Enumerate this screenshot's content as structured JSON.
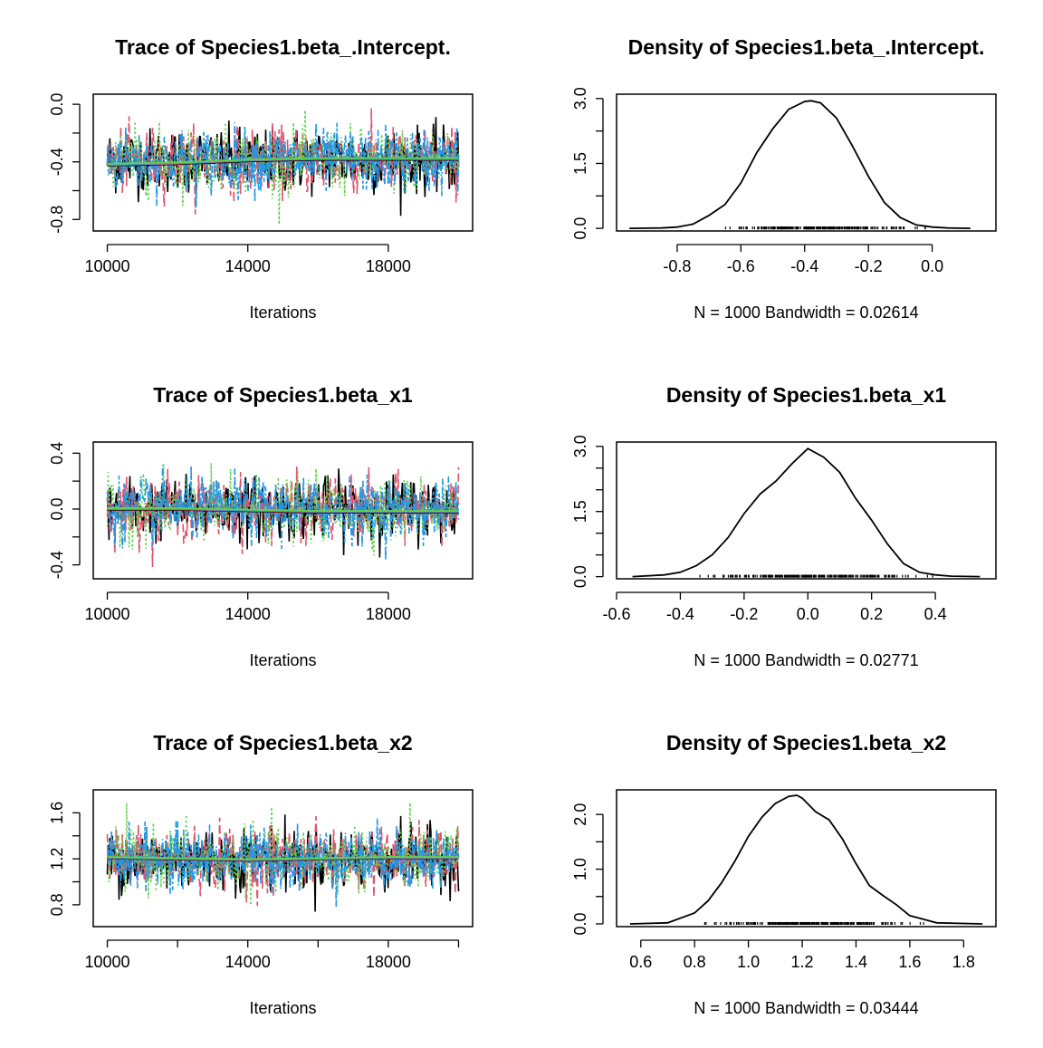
{
  "palette": {
    "chain1": "#000000",
    "chain2": "#DF536B",
    "chain3": "#61D04F",
    "chain4": "#2297E6"
  },
  "chart_data": [
    {
      "type": "line",
      "title": "Trace of Species1.beta_.Intercept.",
      "xlabel": "Iterations",
      "ylabel": "",
      "xticks": [
        10000,
        14000,
        18000
      ],
      "xtick_labels": [
        "10000",
        "14000",
        "18000"
      ],
      "yticks": [
        -0.8,
        -0.6,
        -0.4,
        -0.2,
        0.0
      ],
      "ytick_labels": [
        "-0.8",
        "",
        "-0.4",
        "",
        "0.0"
      ],
      "xlim": [
        9600,
        20400
      ],
      "ylim": [
        -0.88,
        0.07
      ],
      "grid": false,
      "n_chains": 4,
      "iterations": [
        10000,
        20000
      ],
      "chain_mean": -0.39,
      "chain_sd": 0.13,
      "smooth": [
        [
          10000,
          -0.42
        ],
        [
          12000,
          -0.41
        ],
        [
          14000,
          -0.39
        ],
        [
          16000,
          -0.38
        ],
        [
          18000,
          -0.38
        ],
        [
          20000,
          -0.38
        ]
      ]
    },
    {
      "type": "line",
      "title": "Density of Species1.beta_.Intercept.",
      "xlabel": "N = 1000   Bandwidth = 0.02614",
      "ylabel": "",
      "xticks": [
        -0.8,
        -0.6,
        -0.4,
        -0.2,
        0.0
      ],
      "xtick_labels": [
        "-0.8",
        "-0.6",
        "-0.4",
        "-0.2",
        "0.0"
      ],
      "yticks": [
        0.0,
        0.75,
        1.5,
        2.25,
        3.0
      ],
      "ytick_labels": [
        "0.0",
        "",
        "1.5",
        "",
        "3.0"
      ],
      "xlim": [
        -0.99,
        0.2
      ],
      "ylim": [
        -0.06,
        3.1
      ],
      "grid": false,
      "x": [
        -0.95,
        -0.85,
        -0.8,
        -0.75,
        -0.7,
        -0.65,
        -0.6,
        -0.55,
        -0.5,
        -0.45,
        -0.4,
        -0.38,
        -0.35,
        -0.3,
        -0.25,
        -0.2,
        -0.15,
        -0.1,
        -0.05,
        0.0,
        0.05,
        0.12
      ],
      "y": [
        0.0,
        0.01,
        0.03,
        0.1,
        0.3,
        0.55,
        1.05,
        1.75,
        2.3,
        2.75,
        2.93,
        2.95,
        2.9,
        2.55,
        1.9,
        1.2,
        0.6,
        0.25,
        0.08,
        0.03,
        0.01,
        0.0
      ],
      "rug": [
        -0.72,
        0.02
      ]
    },
    {
      "type": "line",
      "title": "Trace of Species1.beta_x1",
      "xlabel": "Iterations",
      "ylabel": "",
      "xticks": [
        10000,
        14000,
        18000
      ],
      "xtick_labels": [
        "10000",
        "14000",
        "18000"
      ],
      "yticks": [
        -0.4,
        -0.2,
        0.0,
        0.2,
        0.4
      ],
      "ytick_labels": [
        "-0.4",
        "",
        "0.0",
        "",
        "0.4"
      ],
      "xlim": [
        9600,
        20400
      ],
      "ylim": [
        -0.5,
        0.48
      ],
      "grid": false,
      "n_chains": 4,
      "iterations": [
        10000,
        20000
      ],
      "chain_mean": 0.0,
      "chain_sd": 0.13,
      "smooth": [
        [
          10000,
          0.0
        ],
        [
          12000,
          0.0
        ],
        [
          14000,
          -0.01
        ],
        [
          16000,
          -0.02
        ],
        [
          18000,
          -0.02
        ],
        [
          20000,
          -0.02
        ]
      ]
    },
    {
      "type": "line",
      "title": "Density of Species1.beta_x1",
      "xlabel": "N = 1000   Bandwidth = 0.02771",
      "ylabel": "",
      "xticks": [
        -0.6,
        -0.4,
        -0.2,
        0.0,
        0.2,
        0.4
      ],
      "xtick_labels": [
        "-0.6",
        "-0.4",
        "-0.2",
        "0.0",
        "0.2",
        "0.4"
      ],
      "yticks": [
        0.0,
        0.5,
        1.0,
        1.5,
        2.0,
        2.5,
        3.0
      ],
      "ytick_labels": [
        "0.0",
        "",
        "",
        "1.5",
        "",
        "",
        "3.0"
      ],
      "xlim": [
        -0.6,
        0.59
      ],
      "ylim": [
        -0.05,
        3.1
      ],
      "grid": false,
      "x": [
        -0.55,
        -0.45,
        -0.4,
        -0.35,
        -0.3,
        -0.25,
        -0.2,
        -0.15,
        -0.1,
        -0.05,
        0.0,
        0.05,
        0.1,
        0.15,
        0.2,
        0.25,
        0.3,
        0.35,
        0.4,
        0.45,
        0.54
      ],
      "y": [
        0.0,
        0.04,
        0.1,
        0.25,
        0.5,
        0.9,
        1.45,
        1.9,
        2.2,
        2.6,
        2.95,
        2.75,
        2.4,
        1.8,
        1.3,
        0.75,
        0.3,
        0.1,
        0.04,
        0.01,
        0.0
      ],
      "rug": [
        -0.44,
        0.44
      ]
    },
    {
      "type": "line",
      "title": "Trace of Species1.beta_x2",
      "xlabel": "Iterations",
      "ylabel": "",
      "xticks": [
        10000,
        12000,
        14000,
        16000,
        18000,
        20000
      ],
      "xtick_labels": [
        "10000",
        "",
        "14000",
        "",
        "18000",
        ""
      ],
      "yticks": [
        0.8,
        1.0,
        1.2,
        1.4,
        1.6
      ],
      "ytick_labels": [
        "0.8",
        "",
        "1.2",
        "",
        "1.6"
      ],
      "xlim": [
        9600,
        20400
      ],
      "ylim": [
        0.61,
        1.8
      ],
      "grid": false,
      "n_chains": 4,
      "iterations": [
        10000,
        20000
      ],
      "chain_mean": 1.2,
      "chain_sd": 0.16,
      "smooth": [
        [
          10000,
          1.21
        ],
        [
          12000,
          1.2
        ],
        [
          14000,
          1.19
        ],
        [
          16000,
          1.2
        ],
        [
          18000,
          1.21
        ],
        [
          20000,
          1.21
        ]
      ]
    },
    {
      "type": "line",
      "title": "Density of Species1.beta_x2",
      "xlabel": "N = 1000   Bandwidth = 0.03444",
      "ylabel": "",
      "xticks": [
        0.6,
        0.8,
        1.0,
        1.2,
        1.4,
        1.6,
        1.8
      ],
      "xtick_labels": [
        "0.6",
        "0.8",
        "1.0",
        "1.2",
        "1.4",
        "1.6",
        "1.8"
      ],
      "yticks": [
        0.0,
        0.5,
        1.0,
        1.5,
        2.0
      ],
      "ytick_labels": [
        "0.0",
        "",
        "1.0",
        "",
        "2.0"
      ],
      "xlim": [
        0.51,
        1.92
      ],
      "ylim": [
        -0.05,
        2.45
      ],
      "grid": false,
      "x": [
        0.56,
        0.7,
        0.8,
        0.85,
        0.9,
        0.95,
        1.0,
        1.05,
        1.1,
        1.15,
        1.18,
        1.2,
        1.25,
        1.3,
        1.35,
        1.4,
        1.45,
        1.5,
        1.55,
        1.6,
        1.7,
        1.87
      ],
      "y": [
        0.0,
        0.02,
        0.2,
        0.42,
        0.75,
        1.15,
        1.6,
        1.95,
        2.2,
        2.33,
        2.35,
        2.3,
        2.05,
        1.9,
        1.55,
        1.1,
        0.7,
        0.52,
        0.35,
        0.15,
        0.02,
        0.0
      ],
      "rug": [
        0.76,
        1.68
      ]
    }
  ]
}
